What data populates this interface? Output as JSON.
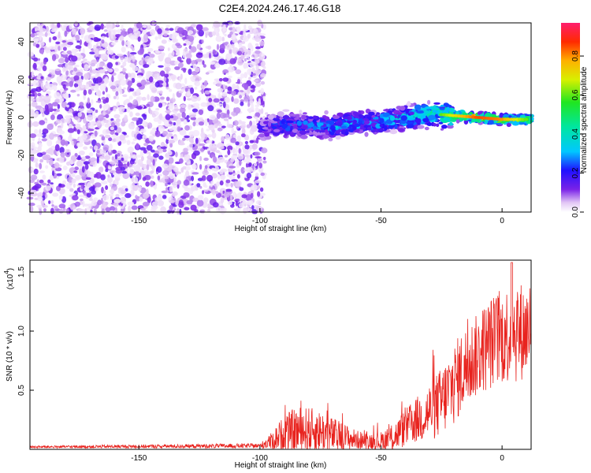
{
  "figure": {
    "title": "C2E4.2024.246.17.46.G18"
  },
  "chart_data": [
    {
      "type": "heatmap",
      "title": "C2E4.2024.246.17.46.G18",
      "xlabel": "Height of straight line (km)",
      "ylabel": "Frequency (Hz)",
      "xlim": [
        -195,
        12
      ],
      "ylim": [
        -50,
        50
      ],
      "x_ticks": [
        -150,
        -100,
        -50,
        0
      ],
      "x_tick_labels": [
        "-150",
        "-100",
        "-50",
        "0"
      ],
      "y_ticks": [
        -40,
        -20,
        0,
        20,
        40
      ],
      "y_tick_labels": [
        "-40",
        "-20",
        "0",
        "20",
        "40"
      ],
      "colorbar": {
        "label": "Normalized spectral amplitude",
        "range": [
          0,
          0.97
        ],
        "ticks": [
          0.0,
          0.2,
          0.4,
          0.6,
          0.8
        ],
        "tick_labels": [
          "0.0",
          "0.2",
          "0.4",
          "0.6",
          "0.8"
        ],
        "colormap": "rainbow (white-purple-blue-cyan-green-yellow-orange-red-pink)"
      },
      "regions": [
        {
          "x_range": [
            -195,
            -100
          ],
          "description": "broadband noise across all frequencies, amplitude 0.0-0.15"
        },
        {
          "x_range": [
            -100,
            12
          ],
          "center_freq_start_hz": -5,
          "center_freq_end_hz": -1,
          "peak_amplitude": 0.9
        }
      ],
      "ridge": {
        "x": [
          -100,
          -90,
          -80,
          -70,
          -60,
          -50,
          -40,
          -30,
          -20,
          -10,
          0,
          10
        ],
        "freq": [
          -5,
          -4,
          -4,
          -5,
          -3,
          -2,
          0,
          2,
          1,
          0,
          -1,
          -1
        ],
        "amplitude": [
          0.2,
          0.3,
          0.3,
          0.35,
          0.35,
          0.35,
          0.4,
          0.5,
          0.7,
          0.85,
          0.8,
          0.6
        ]
      }
    },
    {
      "type": "line",
      "xlabel": "Height of straight line (km)",
      "ylabel": "SNR (10 * v/v)",
      "y_multiplier_label": "(x10",
      "y_multiplier_exp": "4",
      "color": "#e8231e",
      "xlim": [
        -195,
        12
      ],
      "ylim": [
        0,
        1.6
      ],
      "x_ticks": [
        -150,
        -100,
        -50,
        0
      ],
      "x_tick_labels": [
        "-150",
        "-100",
        "-50",
        "0"
      ],
      "y_ticks": [
        0.5,
        1.0,
        1.5
      ],
      "y_tick_labels": [
        "0.5",
        "1.0",
        "1.5"
      ],
      "envelope": {
        "x": [
          -195,
          -100,
          -95,
          -90,
          -85,
          -80,
          -75,
          -70,
          -65,
          -60,
          -55,
          -50,
          -45,
          -40,
          -35,
          -30,
          -25,
          -20,
          -15,
          -10,
          -5,
          0,
          5,
          10,
          12
        ],
        "base": [
          0.02,
          0.03,
          0.07,
          0.14,
          0.16,
          0.16,
          0.15,
          0.12,
          0.1,
          0.08,
          0.07,
          0.07,
          0.1,
          0.18,
          0.25,
          0.32,
          0.4,
          0.55,
          0.7,
          0.8,
          0.9,
          0.95,
          1.0,
          1.0,
          1.05
        ],
        "amp": [
          0.01,
          0.02,
          0.08,
          0.15,
          0.2,
          0.2,
          0.18,
          0.15,
          0.12,
          0.08,
          0.07,
          0.08,
          0.12,
          0.16,
          0.2,
          0.25,
          0.3,
          0.35,
          0.35,
          0.35,
          0.4,
          0.4,
          0.45,
          0.4,
          0.4
        ]
      },
      "peak": {
        "x": 4,
        "y": 1.58
      }
    }
  ]
}
